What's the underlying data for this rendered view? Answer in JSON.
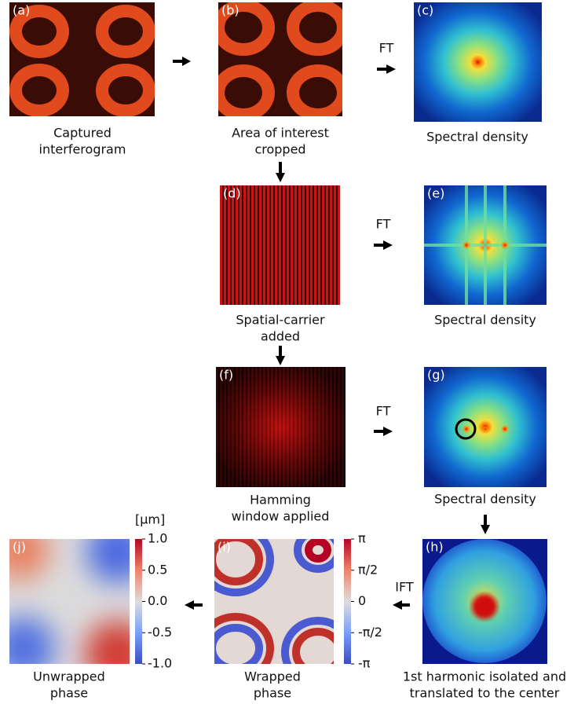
{
  "panels": [
    {
      "label": "(a)",
      "caption": [
        "Captured",
        "interferogram"
      ]
    },
    {
      "label": "(b)",
      "caption": [
        "Area of interest",
        "cropped"
      ]
    },
    {
      "label": "(c)",
      "caption": [
        "Spectral density"
      ]
    },
    {
      "label": "(d)",
      "caption": [
        "Spatial-carrier",
        "added"
      ]
    },
    {
      "label": "(e)",
      "caption": [
        "Spectral density"
      ]
    },
    {
      "label": "(f)",
      "caption": [
        "Hamming",
        "window applied"
      ]
    },
    {
      "label": "(g)",
      "caption": [
        "Spectral density"
      ]
    },
    {
      "label": "(h)",
      "caption": [
        "1st harmonic isolated and",
        "translated to the center"
      ]
    },
    {
      "label": "(i)",
      "caption": [
        "Wrapped",
        "phase"
      ]
    },
    {
      "label": "(j)",
      "caption": [
        "Unwrapped",
        "phase"
      ]
    }
  ],
  "arrow_labels": [
    "FT",
    "FT",
    "FT",
    "IFT"
  ],
  "colorbars": {
    "wrapped_phase": {
      "lim": [
        -3.1416,
        3.1416
      ],
      "ticks": [
        {
          "value": 3.1416,
          "label": "π"
        },
        {
          "value": 1.5708,
          "label": "π/2"
        },
        0,
        {
          "value": -1.5708,
          "label": "-π/2"
        },
        {
          "value": -3.1416,
          "label": "-π"
        }
      ]
    },
    "unwrapped_phase": {
      "unit": "[μm]",
      "lim": [
        -1.0,
        1.0
      ],
      "ticks": [
        {
          "value": 1.0,
          "label": "1.0"
        },
        {
          "value": 0.5,
          "label": "0.5"
        },
        {
          "value": 0.0,
          "label": "0.0"
        },
        {
          "value": -0.5,
          "label": "-0.5"
        },
        {
          "value": -1.0,
          "label": "-1.0"
        }
      ]
    }
  }
}
